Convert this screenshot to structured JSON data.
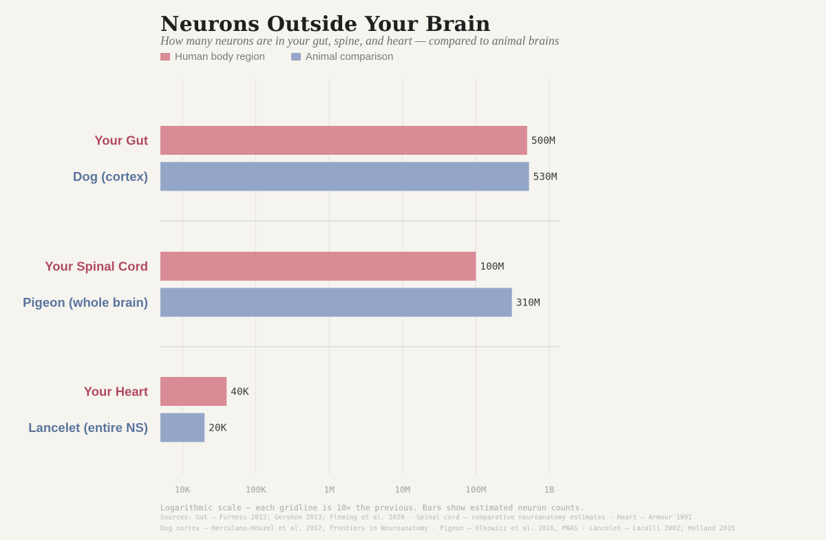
{
  "colors": {
    "human": "#d98b96",
    "animal": "#94a6c8",
    "human_label": "#b04a5e",
    "animal_label": "#5a749e",
    "grid": "#e3e0da",
    "divider": "#d8d5cf",
    "tick": "#a3a3a3",
    "value": "#3a3a3a"
  },
  "chart_data": {
    "type": "bar",
    "orientation": "horizontal",
    "title": "Neurons Outside Your Brain",
    "subtitle": "How many neurons are in your gut, spine, and heart — compared to animal brains",
    "scale": "log",
    "xlim": [
      5000,
      2000000000
    ],
    "ticks": [
      {
        "value": 10000,
        "label": "10K"
      },
      {
        "value": 100000,
        "label": "100K"
      },
      {
        "value": 1000000,
        "label": "1M"
      },
      {
        "value": 10000000,
        "label": "10M"
      },
      {
        "value": 100000000,
        "label": "100M"
      },
      {
        "value": 1000000000,
        "label": "1B"
      }
    ],
    "legend": [
      {
        "name": "Human body region",
        "group": "human"
      },
      {
        "name": "Animal comparison",
        "group": "animal"
      }
    ],
    "groups": [
      {
        "bars": [
          {
            "label": "Your Gut",
            "value": 500000000,
            "value_label": "500M",
            "group": "human"
          },
          {
            "label": "Dog (cortex)",
            "value": 530000000,
            "value_label": "530M",
            "group": "animal"
          }
        ]
      },
      {
        "bars": [
          {
            "label": "Your Spinal Cord",
            "value": 100000000,
            "value_label": "100M",
            "group": "human"
          },
          {
            "label": "Pigeon (whole brain)",
            "value": 310000000,
            "value_label": "310M",
            "group": "animal"
          }
        ]
      },
      {
        "bars": [
          {
            "label": "Your Heart",
            "value": 40000,
            "value_label": "40K",
            "group": "human"
          },
          {
            "label": "Lancelet (entire NS)",
            "value": 20000,
            "value_label": "20K",
            "group": "animal"
          }
        ]
      }
    ],
    "note": "Logarithmic scale — each gridline is 10× the previous. Bars show estimated neuron counts.",
    "sources": [
      "Sources: Gut — Furness 2012; Gershon 2013; Fleming et al. 2020  ·  Spinal cord — comparative neuroanatomy estimates  ·  Heart — Armour 1991",
      "Dog cortex — Herculano-Houzel et al. 2017, Frontiers in Neuroanatomy  ·  Pigeon — Olkowicz et al. 2016, PNAS  ·  Lancelet — Lacalli 2002; Holland 2015"
    ]
  }
}
